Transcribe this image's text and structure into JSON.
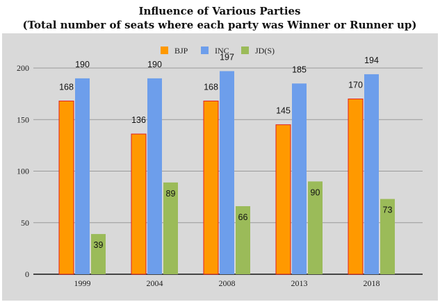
{
  "chart_data": {
    "type": "bar",
    "title": "Influence of Various Parties",
    "subtitle": "(Total number of seats where each party was Winner or Runner up)",
    "xlabel": "",
    "ylabel": "",
    "categories": [
      "1999",
      "2004",
      "2008",
      "2013",
      "2018"
    ],
    "series": [
      {
        "name": "BJP",
        "color": "#ff9900",
        "outline": "#e02020",
        "values": [
          168,
          136,
          168,
          145,
          170
        ]
      },
      {
        "name": "INC",
        "color": "#6d9eeb",
        "values": [
          190,
          190,
          197,
          185,
          194
        ]
      },
      {
        "name": "JD(S)",
        "color": "#9bbb59",
        "values": [
          39,
          89,
          66,
          90,
          73
        ]
      }
    ],
    "ylim": [
      0,
      200
    ],
    "yticks": [
      0,
      50,
      100,
      150,
      200
    ],
    "grid": true,
    "legend": "top-center",
    "background": "#d9d9d9"
  }
}
